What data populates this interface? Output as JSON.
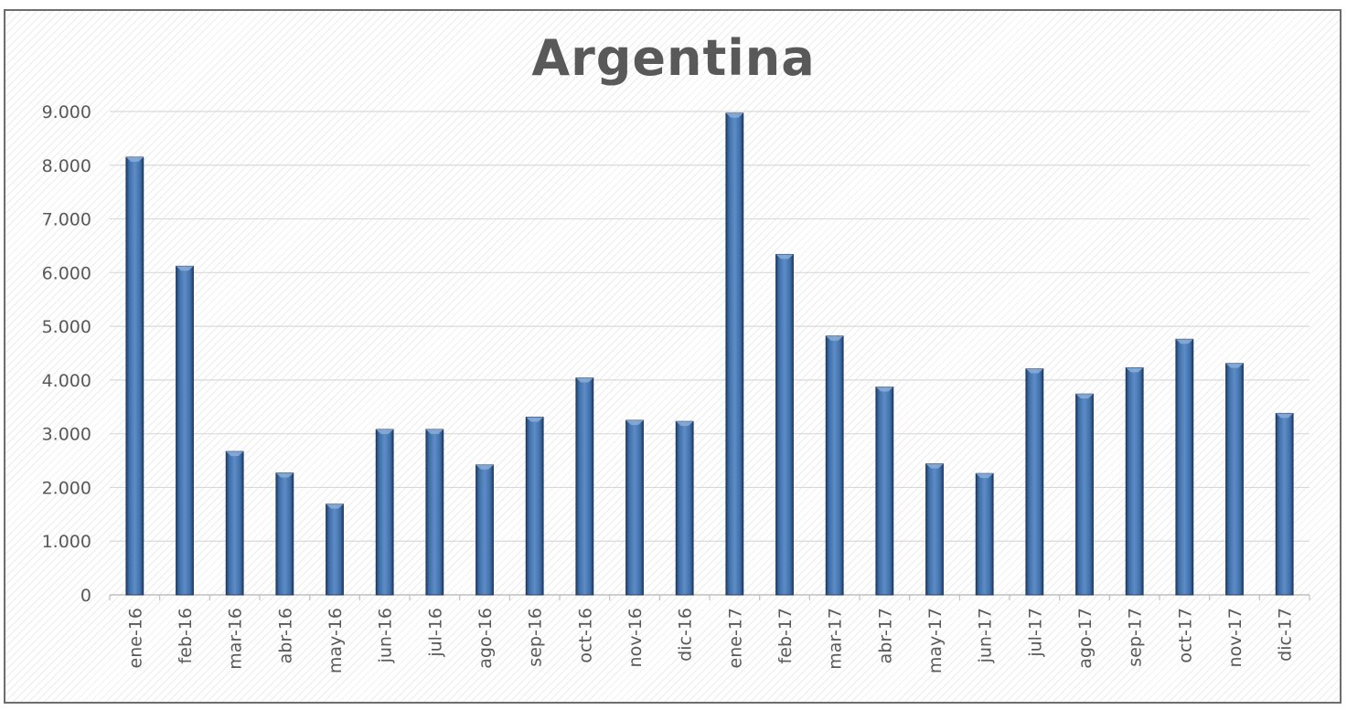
{
  "chart_data": {
    "type": "bar",
    "title": "Argentina",
    "xlabel": "",
    "ylabel": "",
    "ylim": [
      0,
      9000
    ],
    "yticks": [
      0,
      1000,
      2000,
      3000,
      4000,
      5000,
      6000,
      7000,
      8000,
      9000
    ],
    "ytick_labels": [
      "0",
      "1.000",
      "2.000",
      "3.000",
      "4.000",
      "5.000",
      "6.000",
      "7.000",
      "8.000",
      "9.000"
    ],
    "categories": [
      "ene-16",
      "feb-16",
      "mar-16",
      "abr-16",
      "may-16",
      "jun-16",
      "jul-16",
      "ago-16",
      "sep-16",
      "oct-16",
      "nov-16",
      "dic-16",
      "ene-17",
      "feb-17",
      "mar-17",
      "abr-17",
      "may-17",
      "jun-17",
      "jul-17",
      "ago-17",
      "sep-17",
      "oct-17",
      "nov-17",
      "dic-17"
    ],
    "values": [
      8150,
      6120,
      2670,
      2270,
      1690,
      3080,
      3080,
      2420,
      3310,
      4040,
      3250,
      3230,
      8970,
      6340,
      4820,
      3870,
      2440,
      2260,
      4210,
      3740,
      4230,
      4760,
      4310,
      3380
    ],
    "grid": true,
    "legend": "none",
    "bar_color": "#2e5788"
  }
}
